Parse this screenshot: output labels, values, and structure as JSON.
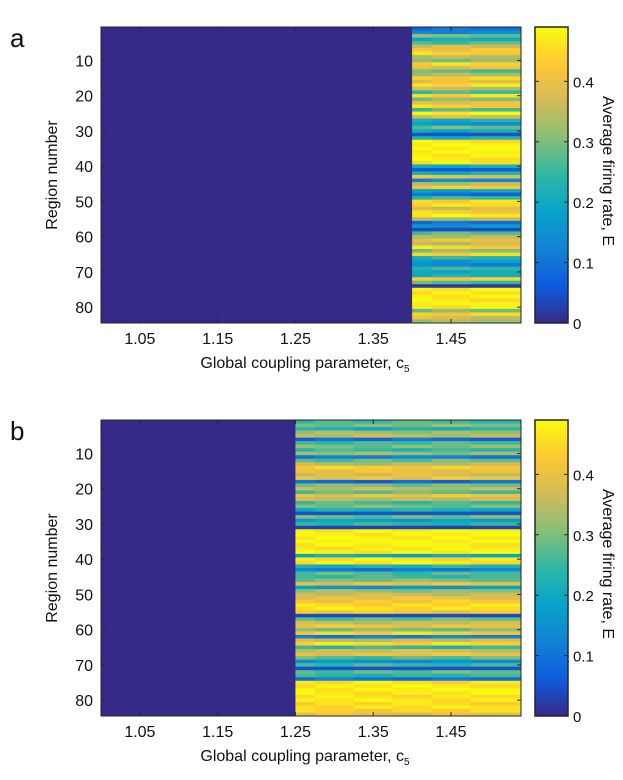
{
  "chart_data": [
    {
      "type": "heatmap",
      "panel_label": "a",
      "xlabel": "Global coupling parameter, c",
      "xlabel_subscript": "5",
      "ylabel": "Region number",
      "colorbar_label": "Average firing rate, E",
      "x_ticks": [
        "1.05",
        "1.15",
        "1.25",
        "1.35",
        "1.45"
      ],
      "y_ticks": [
        "10",
        "20",
        "30",
        "40",
        "50",
        "60",
        "70",
        "80"
      ],
      "colorbar_ticks": [
        "0",
        "0.1",
        "0.2",
        "0.3",
        "0.4"
      ],
      "colorbar_range": [
        0,
        0.49
      ],
      "colormap": "parula",
      "x_range": [
        1.0,
        1.54
      ],
      "y_range": [
        1,
        84
      ],
      "num_regions": 84,
      "active_from_c": 1.4,
      "inactive_value": 0,
      "active_columns": [
        "1.40",
        "1.45",
        "1.50"
      ],
      "active_region_values": [
        0.1,
        0.14,
        0.3,
        0.2,
        0.26,
        0.38,
        0.42,
        0.44,
        0.34,
        0.3,
        0.45,
        0.4,
        0.28,
        0.33,
        0.43,
        0.4,
        0.46,
        0.36,
        0.25,
        0.44,
        0.31,
        0.4,
        0.44,
        0.26,
        0.47,
        0.38,
        0.22,
        0.16,
        0.28,
        0.2,
        0.05,
        0.23,
        0.47,
        0.48,
        0.48,
        0.49,
        0.48,
        0.47,
        0.46,
        0.2,
        0.06,
        0.22,
        0.4,
        0.13,
        0.34,
        0.43,
        0.19,
        0.09,
        0.25,
        0.44,
        0.46,
        0.38,
        0.44,
        0.47,
        0.34,
        0.1,
        0.16,
        0.04,
        0.27,
        0.33,
        0.41,
        0.36,
        0.45,
        0.3,
        0.43,
        0.24,
        0.17,
        0.13,
        0.24,
        0.19,
        0.22,
        0.43,
        0.27,
        0.02,
        0.47,
        0.47,
        0.48,
        0.47,
        0.48,
        0.46,
        0.3,
        0.44,
        0.38,
        0.32
      ]
    },
    {
      "type": "heatmap",
      "panel_label": "b",
      "xlabel": "Global coupling parameter, c",
      "xlabel_subscript": "5",
      "ylabel": "Region number",
      "colorbar_label": "Average firing rate, E",
      "x_ticks": [
        "1.05",
        "1.15",
        "1.25",
        "1.35",
        "1.45"
      ],
      "y_ticks": [
        "10",
        "20",
        "30",
        "40",
        "50",
        "60",
        "70",
        "80"
      ],
      "colorbar_ticks": [
        "0",
        "0.1",
        "0.2",
        "0.3",
        "0.4"
      ],
      "colorbar_range": [
        0,
        0.49
      ],
      "colormap": "parula",
      "x_range": [
        1.0,
        1.54
      ],
      "y_range": [
        1,
        84
      ],
      "num_regions": 84,
      "active_from_c": 1.25,
      "inactive_value": 0,
      "active_columns": [
        "1.25",
        "1.30",
        "1.35",
        "1.40",
        "1.45",
        "1.50"
      ],
      "active_region_values": [
        0.26,
        0.3,
        0.22,
        0.33,
        0.35,
        0.09,
        0.26,
        0.3,
        0.25,
        0.32,
        0.12,
        0.28,
        0.35,
        0.43,
        0.4,
        0.38,
        0.41,
        0.08,
        0.3,
        0.35,
        0.28,
        0.4,
        0.35,
        0.26,
        0.29,
        0.22,
        0.05,
        0.29,
        0.18,
        0.24,
        0.03,
        0.48,
        0.48,
        0.48,
        0.49,
        0.48,
        0.47,
        0.48,
        0.2,
        0.46,
        0.47,
        0.22,
        0.11,
        0.27,
        0.25,
        0.3,
        0.4,
        0.16,
        0.32,
        0.36,
        0.4,
        0.42,
        0.45,
        0.46,
        0.42,
        0.04,
        0.28,
        0.36,
        0.41,
        0.3,
        0.44,
        0.12,
        0.36,
        0.45,
        0.24,
        0.37,
        0.4,
        0.27,
        0.15,
        0.25,
        0.05,
        0.28,
        0.24,
        0.1,
        0.46,
        0.47,
        0.48,
        0.47,
        0.46,
        0.47,
        0.45,
        0.46,
        0.44,
        0.4
      ]
    }
  ]
}
